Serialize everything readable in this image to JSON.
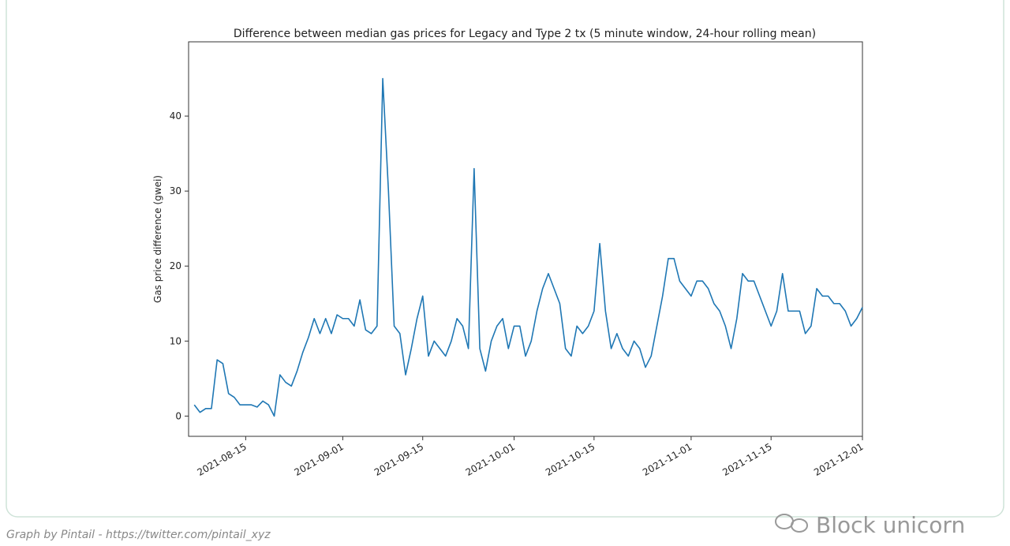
{
  "chart_data": {
    "type": "line",
    "title": "Difference between median gas prices for Legacy and Type 2 tx (5 minute window, 24-hour rolling mean)",
    "ylabel": "Gas price difference (gwei)",
    "x": [
      "2021-08-06",
      "2021-08-07",
      "2021-08-08",
      "2021-08-09",
      "2021-08-10",
      "2021-08-11",
      "2021-08-12",
      "2021-08-13",
      "2021-08-14",
      "2021-08-15",
      "2021-08-16",
      "2021-08-17",
      "2021-08-18",
      "2021-08-19",
      "2021-08-20",
      "2021-08-21",
      "2021-08-22",
      "2021-08-23",
      "2021-08-24",
      "2021-08-25",
      "2021-08-26",
      "2021-08-27",
      "2021-08-28",
      "2021-08-29",
      "2021-08-30",
      "2021-08-31",
      "2021-09-01",
      "2021-09-02",
      "2021-09-03",
      "2021-09-04",
      "2021-09-05",
      "2021-09-06",
      "2021-09-07",
      "2021-09-08",
      "2021-09-09",
      "2021-09-10",
      "2021-09-11",
      "2021-09-12",
      "2021-09-13",
      "2021-09-14",
      "2021-09-15",
      "2021-09-16",
      "2021-09-17",
      "2021-09-18",
      "2021-09-19",
      "2021-09-20",
      "2021-09-21",
      "2021-09-22",
      "2021-09-23",
      "2021-09-24",
      "2021-09-25",
      "2021-09-26",
      "2021-09-27",
      "2021-09-28",
      "2021-09-29",
      "2021-09-30",
      "2021-10-01",
      "2021-10-02",
      "2021-10-03",
      "2021-10-04",
      "2021-10-05",
      "2021-10-06",
      "2021-10-07",
      "2021-10-08",
      "2021-10-09",
      "2021-10-10",
      "2021-10-11",
      "2021-10-12",
      "2021-10-13",
      "2021-10-14",
      "2021-10-15",
      "2021-10-16",
      "2021-10-17",
      "2021-10-18",
      "2021-10-19",
      "2021-10-20",
      "2021-10-21",
      "2021-10-22",
      "2021-10-23",
      "2021-10-24",
      "2021-10-25",
      "2021-10-26",
      "2021-10-27",
      "2021-10-28",
      "2021-10-29",
      "2021-10-30",
      "2021-10-31",
      "2021-11-01",
      "2021-11-02",
      "2021-11-03",
      "2021-11-04",
      "2021-11-05",
      "2021-11-06",
      "2021-11-07",
      "2021-11-08",
      "2021-11-09",
      "2021-11-10",
      "2021-11-11",
      "2021-11-12",
      "2021-11-13",
      "2021-11-14",
      "2021-11-15",
      "2021-11-16",
      "2021-11-17",
      "2021-11-18",
      "2021-11-19",
      "2021-11-20",
      "2021-11-21",
      "2021-11-22",
      "2021-11-23",
      "2021-11-24",
      "2021-11-25",
      "2021-11-26",
      "2021-11-27",
      "2021-11-28",
      "2021-11-29",
      "2021-11-30",
      "2021-12-01"
    ],
    "series": [
      {
        "name": "gas price difference",
        "color": "#1f77b4",
        "values": [
          1.5,
          0.5,
          1,
          1,
          7.5,
          7,
          3,
          2.5,
          1.5,
          1.5,
          1.5,
          1.2,
          2,
          1.5,
          0,
          5.5,
          4.5,
          4,
          6,
          8.5,
          10.5,
          13,
          11,
          13,
          11,
          13.5,
          13,
          13,
          12,
          15.5,
          11.5,
          11,
          12,
          45,
          30,
          12,
          11,
          5.5,
          9,
          13,
          16,
          8,
          10,
          9,
          8,
          10,
          13,
          12,
          9,
          33,
          9,
          6,
          10,
          12,
          13,
          9,
          12,
          12,
          8,
          10,
          14,
          17,
          19,
          17,
          15,
          9,
          8,
          12,
          11,
          12,
          14,
          23,
          14,
          9,
          11,
          9,
          8,
          10,
          9,
          6.5,
          8,
          12,
          16,
          21,
          21,
          18,
          17,
          16,
          18,
          18,
          17,
          15,
          14,
          12,
          9,
          13,
          19,
          18,
          18,
          16,
          14,
          12,
          14,
          19,
          14,
          14,
          14,
          11,
          12,
          17,
          16,
          16,
          15,
          15,
          14,
          12,
          13,
          14.5
        ]
      }
    ],
    "xlim": [
      "2021-08-05",
      "2021-12-01"
    ],
    "xticks": [
      "2021-08-15",
      "2021-09-01",
      "2021-09-15",
      "2021-10-01",
      "2021-10-15",
      "2021-11-01",
      "2021-11-15",
      "2021-12-01"
    ],
    "ylim": [
      -2.7,
      49.9
    ],
    "yticks": [
      0,
      10,
      20,
      30,
      40
    ],
    "grid": false
  },
  "caption": "Graph by Pintail - https://twitter.com/pintail_xyz",
  "watermark": "Block unicorn"
}
